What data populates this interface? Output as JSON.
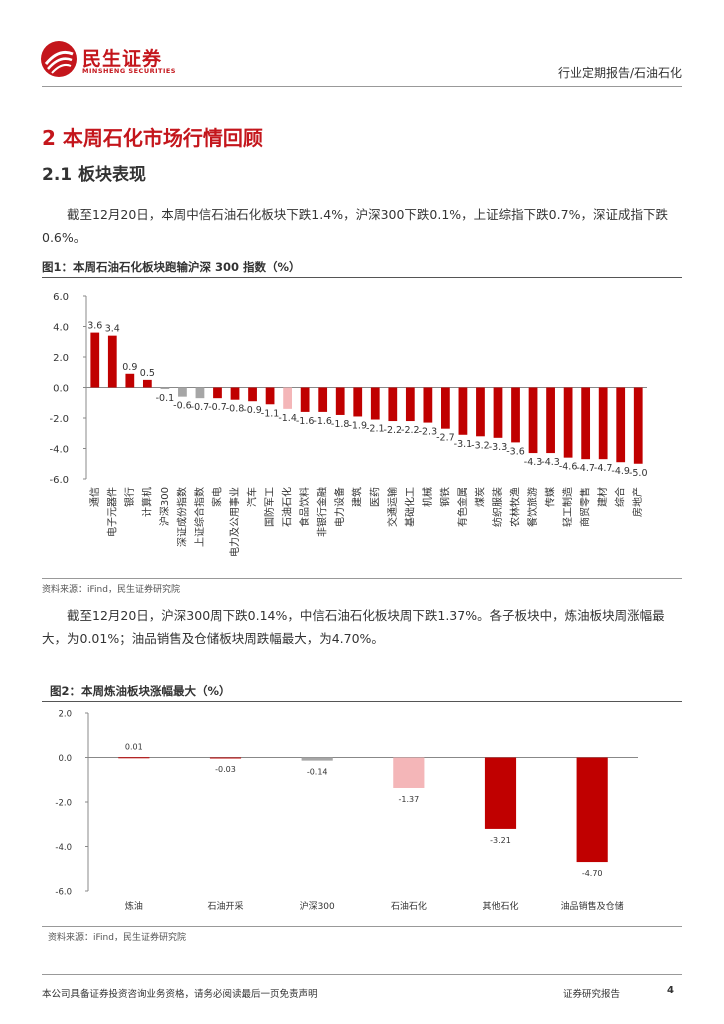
{
  "header": {
    "brand_cn": "民生证券",
    "brand_en": "MINSHENG SECURITIES",
    "report_type": "行业定期报告/石油石化"
  },
  "section": {
    "title": "2 本周石化市场行情回顾",
    "subtitle": "2.1 板块表现"
  },
  "paragraphs": {
    "p1": "截至12月20日，本周中信石油石化板块下跌1.4%，沪深300下跌0.1%，上证综指下跌0.7%，深证成指下跌0.6%。",
    "p2": "截至12月20日，沪深300周下跌0.14%，中信石油石化板块周下跌1.37%。各子板块中，炼油板块周涨幅最大，为0.01%；油品销售及仓储板块周跌幅最大，为4.70%。"
  },
  "figures": {
    "fig1_title": "图1：本周石油石化板块跑输沪深 300 指数（%）",
    "fig1_source": "资料来源：iFind，民生证券研究院",
    "fig2_title": "图2：本周炼油板块涨幅最大（%）",
    "fig2_source": "资料来源：iFind，民生证券研究院"
  },
  "footer": {
    "disclaimer": "本公司具备证券投资咨询业务资格，请务必阅读最后一页免责声明",
    "label": "证券研究报告",
    "page": "4"
  },
  "colors": {
    "brand_red": "#c4161c",
    "bar_red": "#c00000",
    "bar_gray": "#a6a6a6",
    "bar_pink": "#f4b6b8"
  },
  "chart_data": [
    {
      "type": "bar",
      "title": "",
      "xlabel": "",
      "ylabel": "",
      "ylim": [
        -6,
        6
      ],
      "yticks": [
        "6.0",
        "4.0",
        "2.0",
        "0.0",
        "-2.0",
        "-4.0",
        "-6.0"
      ],
      "categories": [
        "通信",
        "电子元器件",
        "银行",
        "计算机",
        "沪深300",
        "深证成份指数",
        "上证综合指数",
        "家电",
        "电力及公用事业",
        "汽车",
        "国防军工",
        "石油石化",
        "食品饮料",
        "非银行金融",
        "电力设备",
        "建筑",
        "医药",
        "交通运输",
        "基础化工",
        "机械",
        "钢铁",
        "有色金属",
        "煤炭",
        "纺织服装",
        "农林牧渔",
        "餐饮旅游",
        "传媒",
        "轻工制造",
        "商贸零售",
        "建材",
        "综合",
        "房地产"
      ],
      "values": [
        3.6,
        3.4,
        0.9,
        0.5,
        -0.1,
        -0.6,
        -0.7,
        -0.7,
        -0.8,
        -0.9,
        -1.1,
        -1.4,
        -1.6,
        -1.6,
        -1.8,
        -1.9,
        -2.1,
        -2.2,
        -2.2,
        -2.3,
        -2.7,
        -3.1,
        -3.2,
        -3.3,
        -3.6,
        -4.3,
        -4.3,
        -4.6,
        -4.7,
        -4.7,
        -4.9,
        -5.0
      ],
      "labels": [
        "3.6",
        "3.4",
        "0.9",
        "0.5",
        "-0.1",
        "-0.6",
        "-0.7",
        "-0.7",
        "-0.8",
        "-0.9",
        "-1.1",
        "-1.4",
        "-1.6",
        "-1.6",
        "-1.8",
        "-1.9",
        "-2.1",
        "-2.2",
        "-2.2",
        "-2.3",
        "-2.7",
        "-3.1",
        "-3.2",
        "-3.3",
        "-3.6",
        "-4.3",
        "-4.3",
        "-4.6",
        "-4.7",
        "-4.7",
        "-4.9",
        "-5.0"
      ],
      "highlight_gray": [
        "沪深300",
        "深证成份指数",
        "上证综合指数"
      ],
      "highlight_pink": [
        "石油石化"
      ]
    },
    {
      "type": "bar",
      "title": "",
      "xlabel": "",
      "ylabel": "",
      "ylim": [
        -6,
        2
      ],
      "yticks": [
        "2.0",
        "0.0",
        "-2.0",
        "-4.0",
        "-6.0"
      ],
      "categories": [
        "炼油",
        "石油开采",
        "沪深300",
        "石油石化",
        "其他石化",
        "油品销售及仓储"
      ],
      "values": [
        0.01,
        -0.03,
        -0.14,
        -1.37,
        -3.21,
        -4.7
      ],
      "labels": [
        "0.01",
        "-0.03",
        "-0.14",
        "-1.37",
        "-3.21",
        "-4.70"
      ],
      "highlight_gray": [
        "沪深300"
      ],
      "highlight_pink": [
        "石油石化"
      ]
    }
  ]
}
